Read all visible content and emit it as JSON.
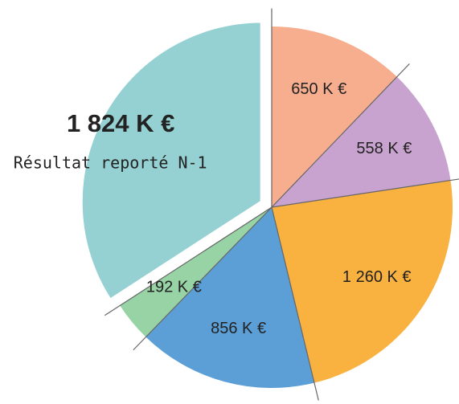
{
  "chart_data": {
    "type": "pie",
    "categories": [
      null,
      null,
      null,
      null,
      null,
      "Résultat reporté N-1"
    ],
    "values": [
      650,
      558,
      1260,
      856,
      192,
      1824
    ],
    "value_labels": [
      "650 K €",
      "558 K €",
      "1 260 K €",
      "856 K €",
      "192 K €",
      "1 824 K €"
    ],
    "colors": [
      "#f7ae8e",
      "#c9a3cf",
      "#f9b13f",
      "#5b9fd6",
      "#97d3a5",
      "#95d1d2"
    ],
    "exploded": [
      false,
      false,
      false,
      false,
      false,
      true
    ]
  }
}
